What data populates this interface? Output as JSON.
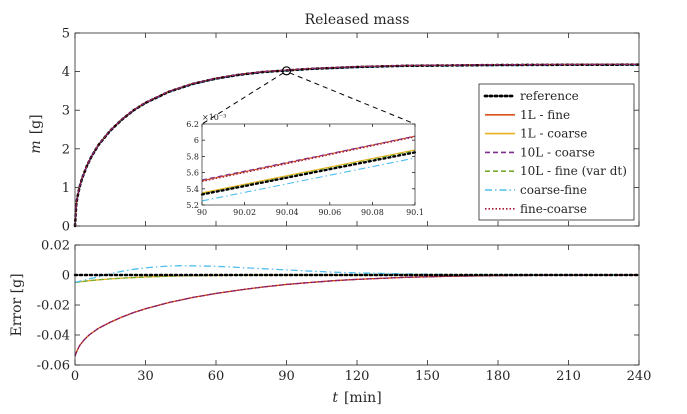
{
  "chart_data": [
    {
      "type": "line",
      "title": "Released mass",
      "xlabel_var": "t",
      "xlabel_unit": "[min]",
      "ylabel_var": "m",
      "ylabel_unit": "[g]",
      "xlim": [
        0,
        240
      ],
      "ylim": [
        0,
        5
      ],
      "xticks": [
        "0",
        "30",
        "60",
        "90",
        "120",
        "150",
        "180",
        "210",
        "240"
      ],
      "yticks": [
        "0",
        "1",
        "2",
        "3",
        "4",
        "5"
      ],
      "curve_samples": {
        "t": [
          0,
          0.5,
          1,
          2,
          3,
          5,
          7,
          10,
          15,
          20,
          25,
          30,
          40,
          50,
          60,
          70,
          80,
          90,
          100,
          120,
          140,
          160,
          180,
          200,
          220,
          240
        ],
        "m": [
          0,
          0.53,
          0.74,
          1.02,
          1.23,
          1.55,
          1.8,
          2.1,
          2.47,
          2.76,
          3.0,
          3.19,
          3.48,
          3.68,
          3.82,
          3.92,
          3.99,
          4.03,
          4.07,
          4.12,
          4.15,
          4.16,
          4.17,
          4.175,
          4.178,
          4.18
        ]
      },
      "marker": {
        "t": 90,
        "m": 4.02
      },
      "legend_position": "right",
      "series": [
        {
          "name": "reference",
          "color": "#000000",
          "dash": "dotted"
        },
        {
          "name": "1L - fine",
          "color": "#D95319",
          "dash": "solid"
        },
        {
          "name": "1L - coarse",
          "color": "#EDB120",
          "dash": "solid"
        },
        {
          "name": "10L - coarse",
          "color": "#7E2F8E",
          "dash": "dashed"
        },
        {
          "name": "10L - fine (var dt)",
          "color": "#77AC30",
          "dash": "dashed"
        },
        {
          "name": "coarse-fine",
          "color": "#4DBEEE",
          "dash": "dashdot"
        },
        {
          "name": "fine-coarse",
          "color": "#A2142F",
          "dash": "dotted"
        }
      ]
    },
    {
      "type": "line",
      "role": "inset",
      "xlim": [
        90,
        90.1
      ],
      "ylim": [
        5.2,
        6.2
      ],
      "y_multiplier": "×10⁻³",
      "xticks": [
        "90",
        "90.02",
        "90.04",
        "90.06",
        "90.08",
        "90.1"
      ],
      "yticks": [
        "5.2",
        "5.4",
        "5.6",
        "5.8",
        "6",
        "6.2"
      ],
      "series": [
        {
          "name": "reference",
          "start": 5.33,
          "end": 5.85
        },
        {
          "name": "1L - fine",
          "start": 5.5,
          "end": 6.05
        },
        {
          "name": "1L - coarse",
          "start": 5.35,
          "end": 5.88
        },
        {
          "name": "10L - coarse",
          "start": 5.51,
          "end": 6.05
        },
        {
          "name": "10L - fine (var dt)",
          "start": 5.34,
          "end": 5.87
        },
        {
          "name": "coarse-fine",
          "start": 5.25,
          "end": 5.78
        },
        {
          "name": "fine-coarse",
          "start": 5.49,
          "end": 6.04
        }
      ]
    },
    {
      "type": "line",
      "xlabel_var": "t",
      "xlabel_unit": "[min]",
      "ylabel": "Error  [g]",
      "xlim": [
        0,
        240
      ],
      "ylim": [
        -0.06,
        0.02
      ],
      "xticks": [
        "0",
        "30",
        "60",
        "90",
        "120",
        "150",
        "180",
        "210",
        "240"
      ],
      "yticks": [
        "-0.06",
        "-0.04",
        "-0.02",
        "0",
        "0.02"
      ],
      "x": [
        0,
        1,
        2,
        4,
        6,
        10,
        15,
        20,
        25,
        30,
        40,
        45,
        50,
        60,
        70,
        80,
        90,
        100,
        110,
        120,
        140,
        160,
        180,
        200,
        220,
        240
      ],
      "series": [
        {
          "name": "reference",
          "values": [
            0,
            0,
            0,
            0,
            0,
            0,
            0,
            0,
            0,
            0,
            0,
            0,
            0,
            0,
            0,
            0,
            0,
            0,
            0,
            0,
            0,
            0,
            0,
            0,
            0,
            0
          ]
        },
        {
          "name": "1L - fine",
          "values": [
            -0.054,
            -0.05,
            -0.047,
            -0.043,
            -0.04,
            -0.0355,
            -0.0315,
            -0.028,
            -0.025,
            -0.0225,
            -0.0183,
            -0.0167,
            -0.015,
            -0.0123,
            -0.01,
            -0.008,
            -0.0063,
            -0.005,
            -0.0038,
            -0.0029,
            -0.0016,
            -0.0008,
            -0.0004,
            -0.0002,
            -0.0001,
            0
          ]
        },
        {
          "name": "1L - coarse",
          "values": [
            -0.005,
            -0.0048,
            -0.0046,
            -0.0042,
            -0.0038,
            -0.0032,
            -0.0026,
            -0.0021,
            -0.0017,
            -0.0013,
            -0.0008,
            -0.0006,
            -0.0005,
            -0.0003,
            -0.0002,
            -0.0001,
            0,
            0,
            0,
            0,
            0,
            0,
            0,
            0,
            0,
            0
          ]
        },
        {
          "name": "10L - coarse",
          "values": [
            -0.054,
            -0.05,
            -0.047,
            -0.043,
            -0.04,
            -0.0355,
            -0.0315,
            -0.028,
            -0.025,
            -0.0225,
            -0.0183,
            -0.0167,
            -0.015,
            -0.0123,
            -0.01,
            -0.008,
            -0.0063,
            -0.005,
            -0.0038,
            -0.0029,
            -0.0016,
            -0.0008,
            -0.0004,
            -0.0002,
            -0.0001,
            0
          ]
        },
        {
          "name": "10L - fine (var dt)",
          "values": [
            -0.005,
            -0.0048,
            -0.0046,
            -0.0042,
            -0.0038,
            -0.0032,
            -0.0026,
            -0.0021,
            -0.0017,
            -0.0013,
            -0.0008,
            -0.0006,
            -0.0005,
            -0.0003,
            -0.0002,
            -0.0001,
            0,
            0,
            0,
            0,
            0,
            0,
            0,
            0,
            0,
            0
          ]
        },
        {
          "name": "coarse-fine",
          "values": [
            -0.005,
            -0.0046,
            -0.0042,
            -0.0034,
            -0.0026,
            -0.0012,
            0.0008,
            0.0025,
            0.0038,
            0.0048,
            0.006,
            0.0062,
            0.0061,
            0.0058,
            0.005,
            0.0042,
            0.0034,
            0.0026,
            0.0019,
            0.0014,
            0.0007,
            0.0003,
            0.0001,
            0,
            0,
            0
          ]
        },
        {
          "name": "fine-coarse",
          "values": [
            -0.054,
            -0.05,
            -0.047,
            -0.043,
            -0.04,
            -0.0355,
            -0.0315,
            -0.028,
            -0.025,
            -0.0225,
            -0.0183,
            -0.0167,
            -0.015,
            -0.0123,
            -0.01,
            -0.008,
            -0.0063,
            -0.005,
            -0.0038,
            -0.0029,
            -0.0016,
            -0.0008,
            -0.0004,
            -0.0002,
            -0.0001,
            0
          ]
        }
      ]
    }
  ]
}
